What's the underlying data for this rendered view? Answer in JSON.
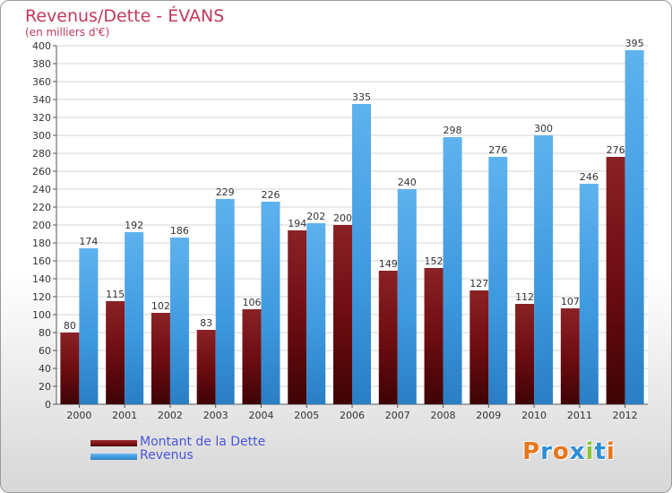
{
  "header": {
    "title": "Revenus/Dette - ÉVANS",
    "subtitle": "(en milliers d'€)"
  },
  "legend": {
    "items": [
      {
        "label": "Montant de la Dette",
        "color": "#7a0f14"
      },
      {
        "label": "Revenus",
        "color": "#3d98de"
      }
    ]
  },
  "logo": {
    "text": "Proxiti",
    "letters": [
      {
        "char": "P",
        "color": "#e8761c"
      },
      {
        "char": "r",
        "color": "#2e8fd6"
      },
      {
        "char": "o",
        "color": "#e8761c"
      },
      {
        "char": "x",
        "color": "#2e8fd6"
      },
      {
        "char": "i",
        "color": "#8ac43a"
      },
      {
        "char": "t",
        "color": "#2e8fd6"
      },
      {
        "char": "i",
        "color": "#e8761c"
      }
    ]
  },
  "chart_data": {
    "type": "bar",
    "title": "Revenus/Dette - ÉVANS",
    "subtitle": "(en milliers d'€)",
    "categories": [
      "2000",
      "2001",
      "2002",
      "2003",
      "2004",
      "2005",
      "2006",
      "2007",
      "2008",
      "2009",
      "2010",
      "2011",
      "2012"
    ],
    "series": [
      {
        "name": "Montant de la Dette",
        "color": "#7a0f14",
        "values": [
          80,
          115,
          102,
          83,
          106,
          194,
          200,
          149,
          152,
          127,
          112,
          107,
          276
        ]
      },
      {
        "name": "Revenus",
        "color": "#3d98de",
        "values": [
          174,
          192,
          186,
          229,
          226,
          202,
          335,
          240,
          298,
          276,
          300,
          246,
          395
        ]
      }
    ],
    "ylim": [
      0,
      400
    ],
    "ytick_step": 20,
    "grid": true,
    "legend_position": "bottom-left"
  }
}
